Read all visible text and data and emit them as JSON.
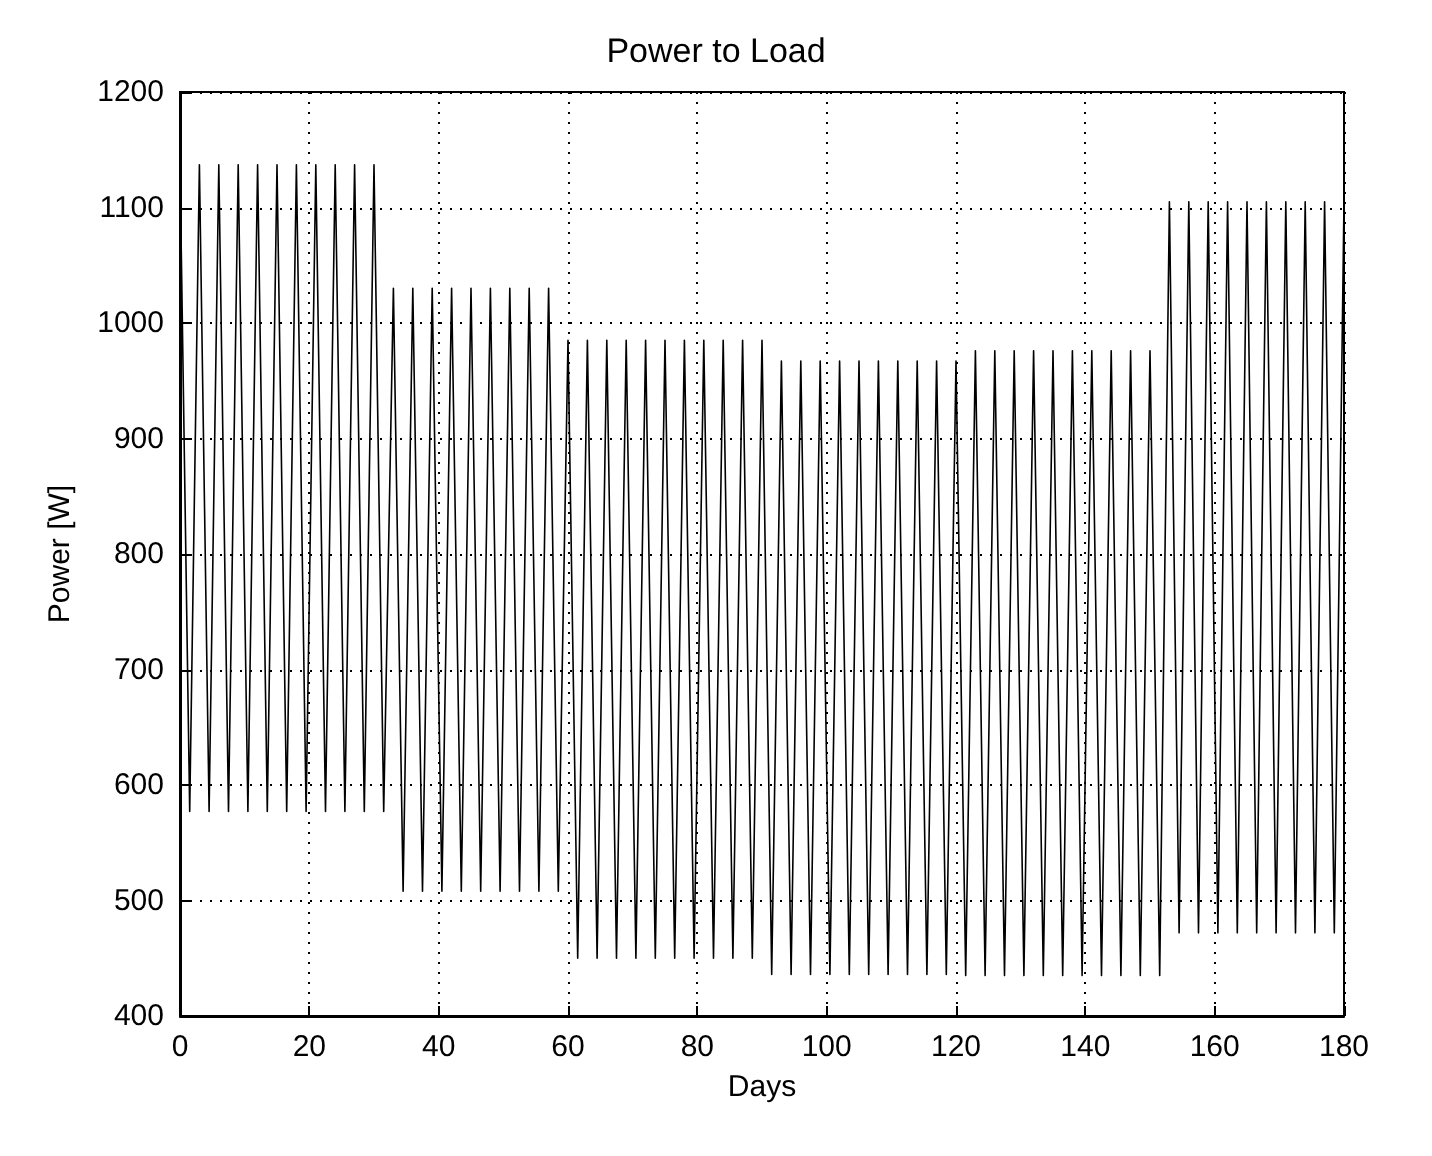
{
  "chart_data": {
    "type": "line",
    "title": "Power to Load",
    "xlabel": "Days",
    "ylabel": "Power [W]",
    "x": [
      0,
      1.5,
      3,
      4.5,
      6,
      7.5,
      9,
      10.5,
      12,
      13.5,
      15,
      16.5,
      18,
      19.5,
      21,
      22.5,
      24,
      25.5,
      27,
      28.5,
      30,
      31.5,
      33,
      34.5,
      36,
      37.5,
      39,
      40.5,
      42,
      43.5,
      45,
      46.5,
      48,
      49.5,
      51,
      52.5,
      54,
      55.5,
      57,
      58.5,
      60,
      61.5,
      63,
      64.5,
      66,
      67.5,
      69,
      70.5,
      72,
      73.5,
      75,
      76.5,
      78,
      79.5,
      81,
      82.5,
      84,
      85.5,
      87,
      88.5,
      90,
      91.5,
      93,
      94.5,
      96,
      97.5,
      99,
      100.5,
      102,
      103.5,
      105,
      106.5,
      108,
      109.5,
      111,
      112.5,
      114,
      115.5,
      117,
      118.5,
      120,
      121.5,
      123,
      124.5,
      126,
      127.5,
      129,
      130.5,
      132,
      133.5,
      135,
      136.5,
      138,
      139.5,
      141,
      142.5,
      144,
      145.5,
      147,
      148.5,
      150,
      151.5,
      153,
      154.5,
      156,
      157.5,
      159,
      160.5,
      162,
      163.5,
      165,
      166.5,
      168,
      169.5,
      171,
      172.5,
      174,
      175.5,
      177,
      178.5,
      180
    ],
    "series": [
      {
        "color": "#000000",
        "values": [
          1137,
          577,
          1137,
          577,
          1137,
          577,
          1137,
          577,
          1137,
          577,
          1137,
          577,
          1137,
          577,
          1137,
          577,
          1137,
          577,
          1137,
          577,
          1137,
          577,
          1030,
          508,
          1030,
          508,
          1030,
          508,
          1030,
          508,
          1030,
          508,
          1030,
          508,
          1030,
          508,
          1030,
          508,
          1030,
          508,
          985,
          450,
          985,
          450,
          985,
          450,
          985,
          450,
          985,
          450,
          985,
          450,
          985,
          450,
          985,
          450,
          985,
          450,
          985,
          450,
          985,
          436,
          967,
          436,
          967,
          436,
          967,
          436,
          967,
          436,
          967,
          436,
          967,
          436,
          967,
          436,
          967,
          436,
          967,
          436,
          967,
          435,
          976,
          435,
          976,
          435,
          976,
          435,
          976,
          435,
          976,
          435,
          976,
          435,
          976,
          435,
          976,
          435,
          976,
          435,
          976,
          435,
          1105,
          472,
          1105,
          472,
          1105,
          472,
          1105,
          472,
          1105,
          472,
          1105,
          472,
          1105,
          472,
          1105,
          472,
          1105,
          472,
          1105
        ]
      }
    ],
    "xlim": [
      0,
      180
    ],
    "xticks": [
      0,
      20,
      40,
      60,
      80,
      100,
      120,
      140,
      160,
      180
    ],
    "ylim": [
      400,
      1200
    ],
    "yticks": [
      400,
      500,
      600,
      700,
      800,
      900,
      1000,
      1100,
      1200
    ],
    "grid": true,
    "marker": "none",
    "line_style": "solid"
  }
}
